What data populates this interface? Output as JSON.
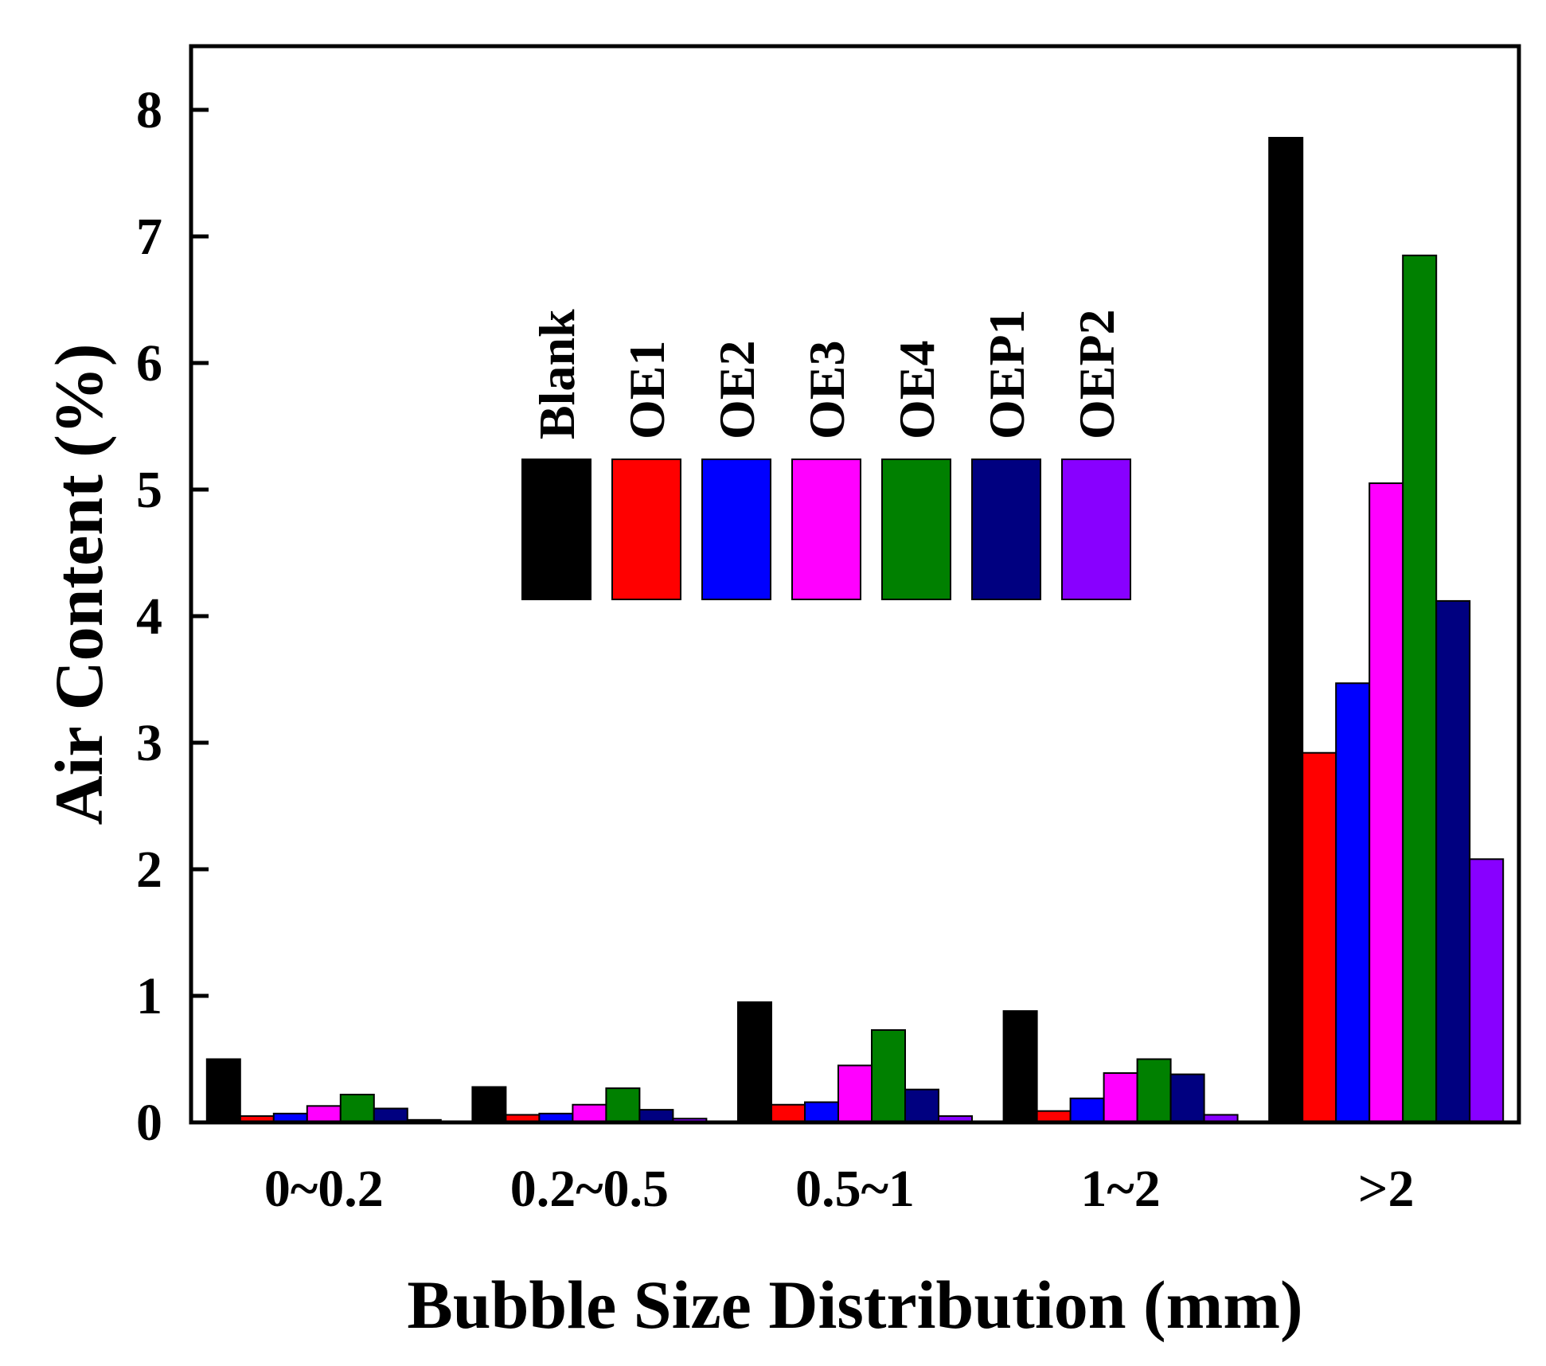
{
  "chart_data": {
    "type": "bar",
    "title": "",
    "xlabel": "Bubble Size Distribution (mm)",
    "ylabel": "Air Content (%)",
    "ylim": [
      0,
      8.5
    ],
    "yticks": [
      "0",
      "1",
      "2",
      "3",
      "4",
      "5",
      "6",
      "7",
      "8"
    ],
    "categories": [
      "0~0.2",
      "0.2~0.5",
      "0.5~1",
      "1~2",
      ">2"
    ],
    "legend_position": "top-center",
    "series": [
      {
        "name": "Blank",
        "color": "#000000",
        "values": [
          0.5,
          0.28,
          0.95,
          0.88,
          7.78
        ]
      },
      {
        "name": "OE1",
        "color": "#ff0000",
        "values": [
          0.05,
          0.06,
          0.14,
          0.09,
          2.92
        ]
      },
      {
        "name": "OE2",
        "color": "#0000ff",
        "values": [
          0.07,
          0.07,
          0.16,
          0.19,
          3.47
        ]
      },
      {
        "name": "OE3",
        "color": "#ff00ff",
        "values": [
          0.13,
          0.14,
          0.45,
          0.39,
          5.05
        ]
      },
      {
        "name": "OE4",
        "color": "#008000",
        "values": [
          0.22,
          0.27,
          0.73,
          0.5,
          6.85
        ]
      },
      {
        "name": "OEP1",
        "color": "#000080",
        "values": [
          0.11,
          0.1,
          0.26,
          0.38,
          4.12
        ]
      },
      {
        "name": "OEP2",
        "color": "#8800ff",
        "values": [
          0.02,
          0.03,
          0.05,
          0.06,
          2.08
        ]
      }
    ]
  }
}
